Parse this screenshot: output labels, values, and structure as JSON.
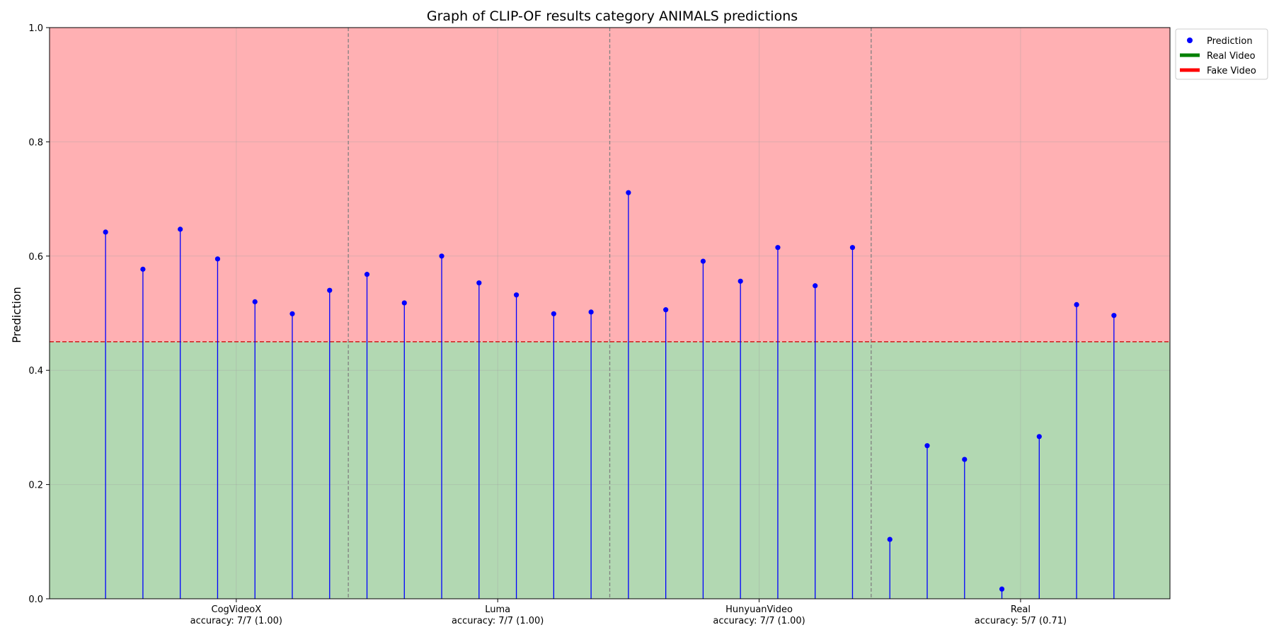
{
  "chart_data": {
    "type": "stem",
    "title": "Graph of CLIP-OF results category ANIMALS predictions",
    "xlabel": "",
    "ylabel": "Prediction",
    "ylim": [
      0,
      1.0
    ],
    "xlim": [
      -0.5,
      29.5
    ],
    "yticks": [
      0.0,
      0.2,
      0.4,
      0.6,
      0.8,
      1.0
    ],
    "ytick_labels": [
      "0.0",
      "0.2",
      "0.4",
      "0.6",
      "0.8",
      "1.0"
    ],
    "threshold": 0.45,
    "grid": true,
    "legend": {
      "placement": "outside-top-right",
      "entries": [
        {
          "label": "Prediction",
          "kind": "marker",
          "color": "#0000ff"
        },
        {
          "label": "Real Video",
          "kind": "line",
          "color": "#008000"
        },
        {
          "label": "Fake Video",
          "kind": "line",
          "color": "#ff0000"
        }
      ]
    },
    "colors": {
      "fake_region": "#ffb0b3",
      "real_region": "#b2d8b2",
      "stem": "#0000ff",
      "threshold": "#d62728",
      "separator": "#808080"
    },
    "groups": [
      {
        "name": "CogVideoX",
        "accuracy_label": "accuracy: 7/7 (1.00)",
        "center": 4.5,
        "x": [
          1,
          2,
          3,
          4,
          5,
          6,
          7
        ],
        "values": [
          0.642,
          0.577,
          0.647,
          0.595,
          0.52,
          0.499,
          0.54
        ]
      },
      {
        "name": "Luma",
        "accuracy_label": "accuracy: 7/7 (1.00)",
        "center": 11.5,
        "x": [
          8,
          9,
          10,
          11,
          12,
          13,
          14
        ],
        "values": [
          0.568,
          0.518,
          0.6,
          0.553,
          0.532,
          0.499,
          0.502
        ]
      },
      {
        "name": "HunyuanVideo",
        "accuracy_label": "accuracy: 7/7 (1.00)",
        "center": 18.5,
        "x": [
          15,
          16,
          17,
          18,
          19,
          20,
          21
        ],
        "values": [
          0.711,
          0.506,
          0.591,
          0.556,
          0.615,
          0.548,
          0.615
        ]
      },
      {
        "name": "Real",
        "accuracy_label": "accuracy: 5/7 (0.71)",
        "center": 25.5,
        "x": [
          22,
          23,
          24,
          25,
          26,
          27,
          28
        ],
        "values": [
          0.104,
          0.268,
          0.244,
          0.017,
          0.284,
          0.515,
          0.496
        ]
      }
    ],
    "separators": [
      7.5,
      14.5,
      21.5
    ],
    "minor_grid_x": [
      4.5,
      11.5,
      18.5,
      25.5
    ]
  }
}
